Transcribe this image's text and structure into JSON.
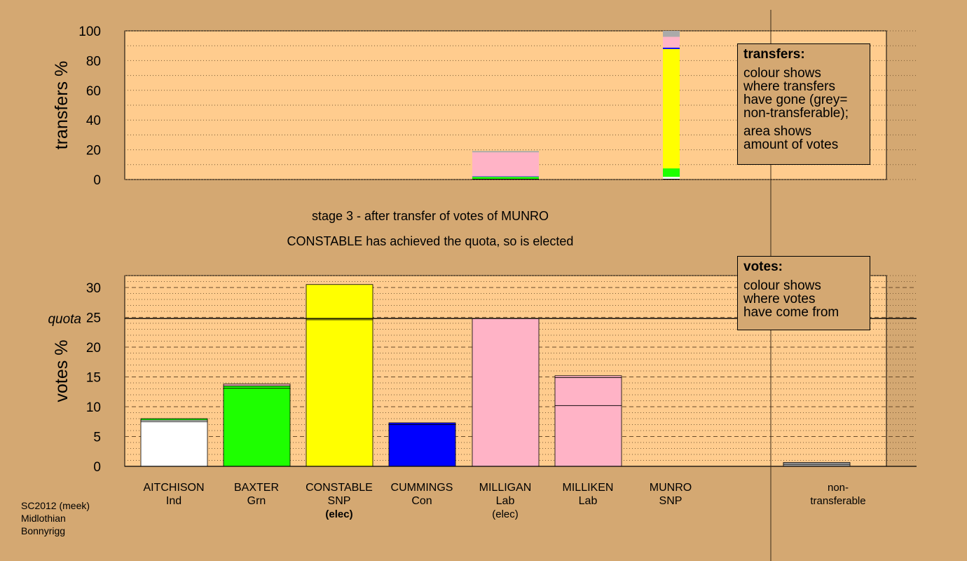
{
  "colors": {
    "background": "#d4a872",
    "plot_background": "#ffcc8e",
    "party": {
      "Ind": "#ffffff",
      "Grn": "#1eff00",
      "SNP": "#ffff00",
      "Con": "#0000ff",
      "Lab": "#ffb3c6",
      "non-transferable": "#aaaaaa"
    }
  },
  "stage_text": {
    "line1": "stage 3 - after transfer of votes of MUNRO",
    "line2": "CONSTABLE has achieved the quota, so is elected"
  },
  "footer": {
    "line1": "SC2012 (meek)",
    "line2": "Midlothian",
    "line3": "Bonnyrigg"
  },
  "legend_transfers": {
    "title": "transfers:",
    "line1": "colour shows",
    "line2": "where transfers",
    "line3": "have gone (grey=",
    "line4": "non-transferable);",
    "line5": "area shows",
    "line6": "amount of votes"
  },
  "legend_votes": {
    "title": "votes:",
    "line1": "colour shows",
    "line2": "where votes",
    "line3": "have come from"
  },
  "candidates": [
    {
      "name": "AITCHISON",
      "party": "Ind",
      "status": ""
    },
    {
      "name": "BAXTER",
      "party": "Grn",
      "status": ""
    },
    {
      "name": "CONSTABLE",
      "party": "SNP",
      "status": "(elec)"
    },
    {
      "name": "CUMMINGS",
      "party": "Con",
      "status": ""
    },
    {
      "name": "MILLIGAN",
      "party": "Lab",
      "status": "(elec)"
    },
    {
      "name": "MILLIKEN",
      "party": "Lab",
      "status": ""
    },
    {
      "name": "MUNRO",
      "party": "SNP",
      "status": ""
    }
  ],
  "non_transferable_label": {
    "line1": "non-",
    "line2": "transferable"
  },
  "chart_data": [
    {
      "type": "bar",
      "title": "",
      "xlabel": "",
      "ylabel": "transfers %",
      "ylim": [
        0,
        100
      ],
      "yticks": [
        0,
        20,
        40,
        60,
        80,
        100
      ],
      "grid": "dotted",
      "legend": "top-right",
      "transfer_columns": [
        {
          "from": "MILLIGAN",
          "segments": [
            {
              "party": "Grn",
              "value": 1.8
            },
            {
              "party": "Con",
              "value": 0.3
            },
            {
              "party": "Lab",
              "value": 16.2
            },
            {
              "party": "non-transferable",
              "value": 0.9
            }
          ],
          "total": 19.2
        },
        {
          "from": "MUNRO",
          "segments": [
            {
              "party": "Ind",
              "value": 1.8
            },
            {
              "party": "Grn",
              "value": 5.7
            },
            {
              "party": "SNP",
              "value": 80.3
            },
            {
              "party": "Con",
              "value": 0.9
            },
            {
              "party": "Lab",
              "value": 7.3
            },
            {
              "party": "non-transferable",
              "value": 4.0
            }
          ],
          "total": 100
        }
      ]
    },
    {
      "type": "bar",
      "title": "",
      "xlabel": "",
      "ylabel": "votes %",
      "ylim": [
        0,
        32
      ],
      "yticks": [
        0,
        5,
        10,
        15,
        20,
        25,
        30
      ],
      "quota": 24.8,
      "quota_label": "quota",
      "grid": "dashed",
      "legend": "top-right",
      "categories": [
        "AITCHISON",
        "BAXTER",
        "CONSTABLE",
        "CUMMINGS",
        "MILLIGAN",
        "MILLIKEN",
        "MUNRO",
        "non-transferable"
      ],
      "stacks": [
        [
          {
            "party": "Ind",
            "value": 7.5
          },
          {
            "party": "Ind",
            "value": 0.25
          },
          {
            "party": "Grn",
            "value": 0.25
          }
        ],
        [
          {
            "party": "Grn",
            "value": 13.1
          },
          {
            "party": "Grn",
            "value": 0.4
          },
          {
            "party": "Lab",
            "value": 0.3
          }
        ],
        [
          {
            "party": "SNP",
            "value": 24.6
          },
          {
            "party": "SNP",
            "value": 5.9
          }
        ],
        [
          {
            "party": "Con",
            "value": 7.0
          },
          {
            "party": "Con",
            "value": 0.3
          }
        ],
        [
          {
            "party": "Lab",
            "value": 24.8
          }
        ],
        [
          {
            "party": "Lab",
            "value": 10.2
          },
          {
            "party": "Lab",
            "value": 4.7
          },
          {
            "party": "Lab",
            "value": 0.3
          }
        ],
        [],
        [
          {
            "party": "non-transferable",
            "value": 0.35
          },
          {
            "party": "non-transferable",
            "value": 0.3
          }
        ]
      ]
    }
  ]
}
